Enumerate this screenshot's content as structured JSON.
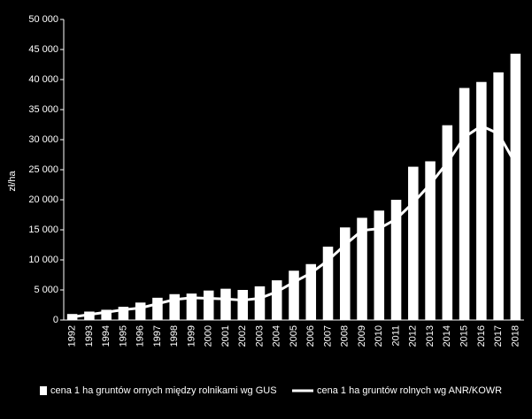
{
  "chart_data": {
    "type": "bar_line",
    "y_label": "zł/ha",
    "categories": [
      "1992",
      "1993",
      "1994",
      "1995",
      "1996",
      "1997",
      "1998",
      "1999",
      "2000",
      "2001",
      "2002",
      "2003",
      "2004",
      "2005",
      "2006",
      "2007",
      "2008",
      "2009",
      "2010",
      "2011",
      "2012",
      "2013",
      "2014",
      "2015",
      "2016",
      "2017",
      "2018"
    ],
    "series": [
      {
        "name": "cena 1 ha gruntów ornych między rolnikami wg GUS",
        "type": "bar",
        "color": "#ffffff",
        "values": [
          1000,
          1400,
          1700,
          2200,
          2900,
          3700,
          4300,
          4400,
          4900,
          5200,
          5000,
          5600,
          6600,
          8200,
          9300,
          12200,
          15400,
          17000,
          18200,
          20000,
          25500,
          26400,
          32400,
          38600,
          39600,
          41200,
          44300
        ]
      },
      {
        "name": "cena 1 ha gruntów rolnych wg ANR/KOWR",
        "type": "line",
        "color": "#ffffff",
        "values": [
          500,
          900,
          1300,
          1700,
          2000,
          2700,
          3400,
          3700,
          3600,
          3500,
          3300,
          3600,
          4700,
          6300,
          7800,
          9900,
          12500,
          14900,
          15200,
          16800,
          19500,
          22600,
          26200,
          30400,
          32300,
          31000,
          26000
        ]
      }
    ],
    "ylim": [
      0,
      50000
    ],
    "yticks": [
      0,
      {
        "value": 5000,
        "label": "5 000"
      },
      {
        "value": 10000,
        "label": "10 000"
      },
      {
        "value": 15000,
        "label": "15 000"
      },
      {
        "value": 20000,
        "label": "20 000"
      },
      {
        "value": 25000,
        "label": "25 000"
      },
      {
        "value": 30000,
        "label": "30 000"
      },
      {
        "value": 35000,
        "label": "35 000"
      },
      {
        "value": 40000,
        "label": "40 000"
      },
      {
        "value": 45000,
        "label": "45 000"
      },
      {
        "value": 50000,
        "label": "50 000"
      }
    ]
  }
}
